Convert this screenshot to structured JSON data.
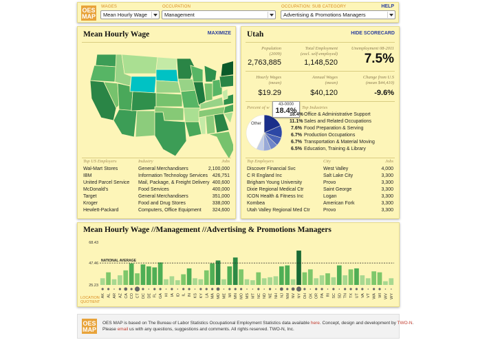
{
  "top": {
    "logo": [
      "OES",
      "MAP"
    ],
    "wages_label": "WAGES",
    "wages_value": "Mean Hourly Wage",
    "occupation_label": "OCCUPATION",
    "occupation_value": "Management",
    "sub_label": "OCCUPATION: SUB CATEGORY",
    "sub_value": "Advertising & Promotions Managers",
    "help": "HELP"
  },
  "map_panel": {
    "title": "Mean Hourly Wage",
    "maximize": "MAXIMIZE"
  },
  "employers_us": {
    "headers": [
      "Top US Employers",
      "Industry",
      "Jobs"
    ],
    "rows": [
      [
        "Wal-Mart Stores",
        "General Merchandisers",
        "2,100,000"
      ],
      [
        "IBM",
        "Information Technology Services",
        "426,751"
      ],
      [
        "United Parcel Service",
        "Mail, Package, & Freight Delivery",
        "400,600"
      ],
      [
        "McDonald's",
        "Food Services",
        "400,000"
      ],
      [
        "Target",
        "General Merchandisers",
        "351,000"
      ],
      [
        "Kroger",
        "Food and Drug Stores",
        "338,000"
      ],
      [
        "Hewlett-Packard",
        "Computers, Office Equipment",
        "324,600"
      ]
    ]
  },
  "scorecard": {
    "title": "Utah",
    "hide": "HIDE SCORECARD",
    "pop_label": [
      "Population",
      "(2009)"
    ],
    "pop_value": "2,763,885",
    "emp_label": [
      "Total Employment",
      "(excl. self-employed)"
    ],
    "emp_value": "1,148,520",
    "unemp_label": "Unemployment 08-2011",
    "unemp_value": "7.5%",
    "hw_label": [
      "Hourly Wages",
      "(mean)"
    ],
    "hw_value": "$19.29",
    "aw_label": [
      "Annual Wages",
      "(mean)"
    ],
    "aw_value": "$40,120",
    "chg_label": [
      "Change from U.S",
      "(mean $44,410)"
    ],
    "chg_value": "-9.6%",
    "pie_label": "Percent of w",
    "pie_other": "Other",
    "tooltip_code": "43-0000",
    "tooltip_value": "18.4%",
    "industries_label": "Top Industries",
    "industries": [
      [
        "18.4%",
        "Office & Administrative Support"
      ],
      [
        "11.1%",
        "Sales and Related Occupations"
      ],
      [
        "7.6%",
        "Food Preparation & Serving"
      ],
      [
        "6.7%",
        "Production Occupations"
      ],
      [
        "6.7%",
        "Transportation & Material Moving"
      ],
      [
        "6.5%",
        "Education, Training & Library"
      ]
    ],
    "pie_values": [
      18.4,
      11.1,
      7.6,
      6.7,
      6.7,
      6.5,
      43.0
    ],
    "pie_colors": [
      "#1a2f8a",
      "#2c47a5",
      "#4a64b8",
      "#6f86c9",
      "#98a9d8",
      "#c2cde8",
      "#ffffff"
    ]
  },
  "employers_ut": {
    "headers": [
      "Top Employers",
      "City",
      "Jobs"
    ],
    "rows": [
      [
        "Discover Financial Svc",
        "West Valley",
        "4,000"
      ],
      [
        "C R England Inc",
        "Salt Lake City",
        "3,300"
      ],
      [
        "Brigham Young University",
        "Provo",
        "3,300"
      ],
      [
        "Dixie Regional Medical Ctr",
        "Saint George",
        "3,300"
      ],
      [
        "ICON Health & Fitness Inc",
        "Logan",
        "3,300"
      ],
      [
        "Kombea",
        "American Fork",
        "3,300"
      ],
      [
        "Utah Valley Regional Med Ctr",
        "Provo",
        "3,300"
      ]
    ]
  },
  "chart_data": {
    "type": "bar",
    "title": "Mean Hourly Wage //Management //Advertising & Promotions Managers",
    "ylim": [
      25.23,
      68.43
    ],
    "yticks": [
      "68.43",
      "47.46",
      "25.23"
    ],
    "national_average_label": "NATIONAL AVERAGE",
    "national_average": 47.46,
    "location_quotient_label": [
      "LOCATION",
      "QUOTIENT"
    ],
    "categories": [
      "AK",
      "AL",
      "AR",
      "AZ",
      "CA",
      "CO",
      "CT",
      "DC",
      "DE",
      "FL",
      "GA",
      "HI",
      "IA",
      "ID",
      "IL",
      "IN",
      "KS",
      "KY",
      "LA",
      "MA",
      "MD",
      "ME",
      "MI",
      "MN",
      "MO",
      "MS",
      "MT",
      "NC",
      "ND",
      "NE",
      "NH",
      "NJ",
      "NM",
      "NV",
      "NY",
      "OH",
      "OK",
      "OR",
      "PA",
      "RI",
      "SC",
      "SD",
      "TN",
      "TX",
      "UT",
      "VA",
      "VT",
      "WA",
      "WI",
      "WV",
      "WY"
    ],
    "values": [
      32,
      38,
      31,
      35,
      40,
      47,
      37,
      46,
      44,
      43,
      48,
      31,
      34,
      30,
      36,
      42,
      32,
      31,
      40,
      47,
      50,
      31,
      44,
      53,
      41,
      31,
      30,
      38,
      32,
      33,
      34,
      44,
      45,
      31,
      60,
      38,
      41,
      32,
      35,
      37,
      33,
      45,
      35,
      41,
      42,
      35,
      32,
      39,
      38,
      29,
      32
    ],
    "location_quotient": [
      1,
      1,
      0,
      1,
      2,
      1,
      3,
      1,
      0,
      1,
      1,
      0,
      1,
      0,
      1,
      1,
      0,
      1,
      1,
      1,
      2,
      0,
      1,
      1,
      1,
      0,
      0,
      1,
      0,
      1,
      0,
      2,
      1,
      2,
      3,
      1,
      0,
      1,
      1,
      0,
      1,
      0,
      1,
      1,
      1,
      1,
      0,
      1,
      1,
      0,
      0
    ],
    "bar_colors": [
      "#a8d890",
      "#7ec76a",
      "#4fae55",
      "#2d8a45",
      "#1a6a34"
    ]
  },
  "footer": {
    "logo": [
      "OES",
      "MAP"
    ],
    "line1_a": "OES MAP is based on The Bureau of Labor Statistics Occupational Employment Statistics data available ",
    "line1_link": "here",
    "line1_b": ". Concept, design and development by ",
    "line1_link2": "TWO-N",
    "line1_c": ".",
    "line2_a": "Please ",
    "line2_link": "email",
    "line2_b": " us with any questions, suggestions and comments. All rights reserved. TWO-N, Inc."
  }
}
